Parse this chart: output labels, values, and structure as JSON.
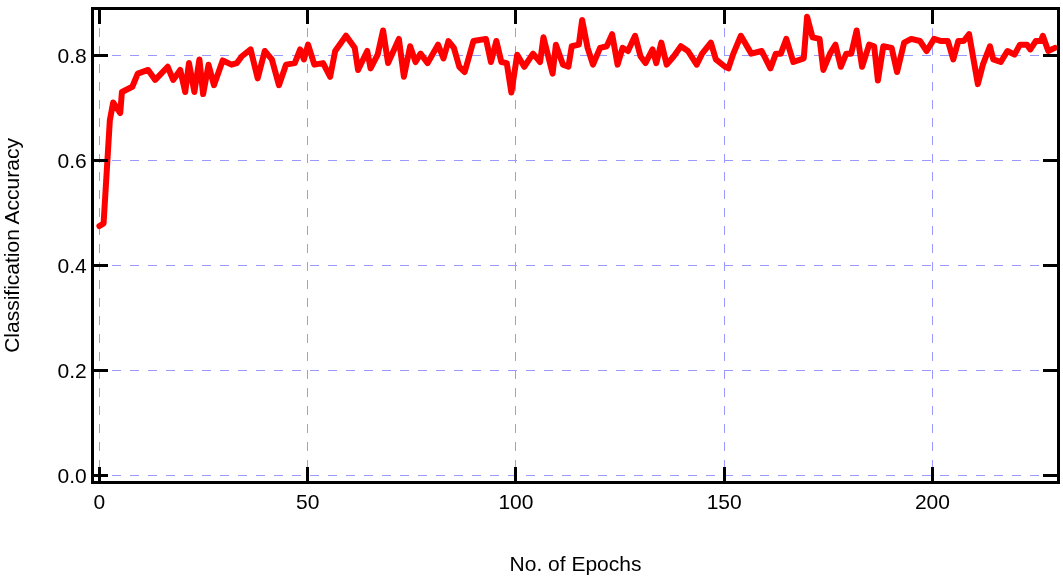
{
  "chart_data": {
    "type": "line",
    "xlabel": "No. of Epochs",
    "ylabel": "Classification Accuracy",
    "xlim": [
      -1.3,
      229.9
    ],
    "ylim": [
      -0.01,
      0.886
    ],
    "xticks": [
      0,
      50,
      100,
      150,
      200
    ],
    "yticks": [
      {
        "value": 0,
        "label": "0.0"
      },
      0.2,
      0.4,
      0.6,
      0.8
    ],
    "grid": true,
    "marker": "none",
    "line_style": "solid",
    "series": [
      {
        "color": "#ff0000",
        "x": [
          0,
          1,
          2.5,
          3.3,
          5,
          5.4,
          7.9,
          9.2,
          11.7,
          13.4,
          16.4,
          17.7,
          19.4,
          20.6,
          21.5,
          22.8,
          24,
          24.9,
          26.2,
          27.5,
          29.6,
          31.7,
          33,
          34.2,
          36.3,
          38,
          39.7,
          41.4,
          43.1,
          44.8,
          46.9,
          48.2,
          49.1,
          50.1,
          51.6,
          53.7,
          55.4,
          56.6,
          59.2,
          61.3,
          62.1,
          64.3,
          65.1,
          66.8,
          68.1,
          69.3,
          71.9,
          73.1,
          74.6,
          75.9,
          77.1,
          78.8,
          81.3,
          82.6,
          83.8,
          85.1,
          86.4,
          87.7,
          89.8,
          92.8,
          94,
          95.3,
          96.5,
          97.8,
          98.9,
          100.3,
          102,
          104.1,
          105.8,
          106.6,
          108.8,
          109.6,
          111.3,
          112.6,
          113.4,
          115.1,
          115.9,
          117.2,
          118.5,
          120.2,
          121.8,
          123.1,
          124.4,
          125.6,
          126.9,
          128.6,
          129.9,
          131.1,
          132.8,
          133.7,
          134.9,
          136.2,
          137.9,
          139.6,
          141.3,
          143.4,
          144.7,
          146.8,
          148,
          150.2,
          151,
          152.2,
          154,
          156.5,
          159,
          161.1,
          162.4,
          163.6,
          164.9,
          166.6,
          169.1,
          169.9,
          171.2,
          172.9,
          173.8,
          175.4,
          176.7,
          178,
          179.3,
          180.5,
          181.8,
          183.1,
          184.8,
          186,
          186.9,
          188.2,
          190.2,
          191.5,
          193.2,
          194.9,
          197,
          198.6,
          200.4,
          202.1,
          203.7,
          205,
          206.2,
          207.5,
          208.8,
          210.9,
          212.1,
          213.8,
          214.6,
          216.4,
          218,
          219.7,
          221,
          222.7,
          223.5,
          224.8,
          226,
          226.5,
          227.8,
          229.4
        ],
        "values": [
          0.475,
          0.48,
          0.676,
          0.71,
          0.69,
          0.73,
          0.74,
          0.765,
          0.772,
          0.753,
          0.778,
          0.753,
          0.772,
          0.73,
          0.785,
          0.73,
          0.792,
          0.726,
          0.782,
          0.743,
          0.79,
          0.782,
          0.785,
          0.798,
          0.811,
          0.756,
          0.808,
          0.792,
          0.743,
          0.782,
          0.785,
          0.811,
          0.792,
          0.82,
          0.782,
          0.785,
          0.759,
          0.808,
          0.837,
          0.814,
          0.772,
          0.808,
          0.775,
          0.801,
          0.847,
          0.785,
          0.831,
          0.759,
          0.817,
          0.787,
          0.803,
          0.785,
          0.82,
          0.794,
          0.827,
          0.814,
          0.778,
          0.768,
          0.827,
          0.831,
          0.787,
          0.827,
          0.787,
          0.785,
          0.729,
          0.801,
          0.778,
          0.803,
          0.787,
          0.834,
          0.765,
          0.82,
          0.782,
          0.778,
          0.817,
          0.82,
          0.867,
          0.814,
          0.782,
          0.814,
          0.817,
          0.84,
          0.782,
          0.814,
          0.808,
          0.837,
          0.798,
          0.785,
          0.811,
          0.785,
          0.824,
          0.782,
          0.798,
          0.817,
          0.808,
          0.782,
          0.803,
          0.824,
          0.792,
          0.778,
          0.775,
          0.803,
          0.837,
          0.803,
          0.808,
          0.775,
          0.803,
          0.803,
          0.831,
          0.787,
          0.794,
          0.873,
          0.834,
          0.831,
          0.772,
          0.803,
          0.82,
          0.778,
          0.803,
          0.803,
          0.847,
          0.778,
          0.82,
          0.817,
          0.752,
          0.817,
          0.814,
          0.768,
          0.824,
          0.831,
          0.827,
          0.808,
          0.831,
          0.827,
          0.827,
          0.792,
          0.827,
          0.827,
          0.84,
          0.745,
          0.782,
          0.817,
          0.792,
          0.787,
          0.808,
          0.801,
          0.82,
          0.82,
          0.811,
          0.827,
          0.827,
          0.837,
          0.808,
          0.814
        ]
      }
    ]
  }
}
